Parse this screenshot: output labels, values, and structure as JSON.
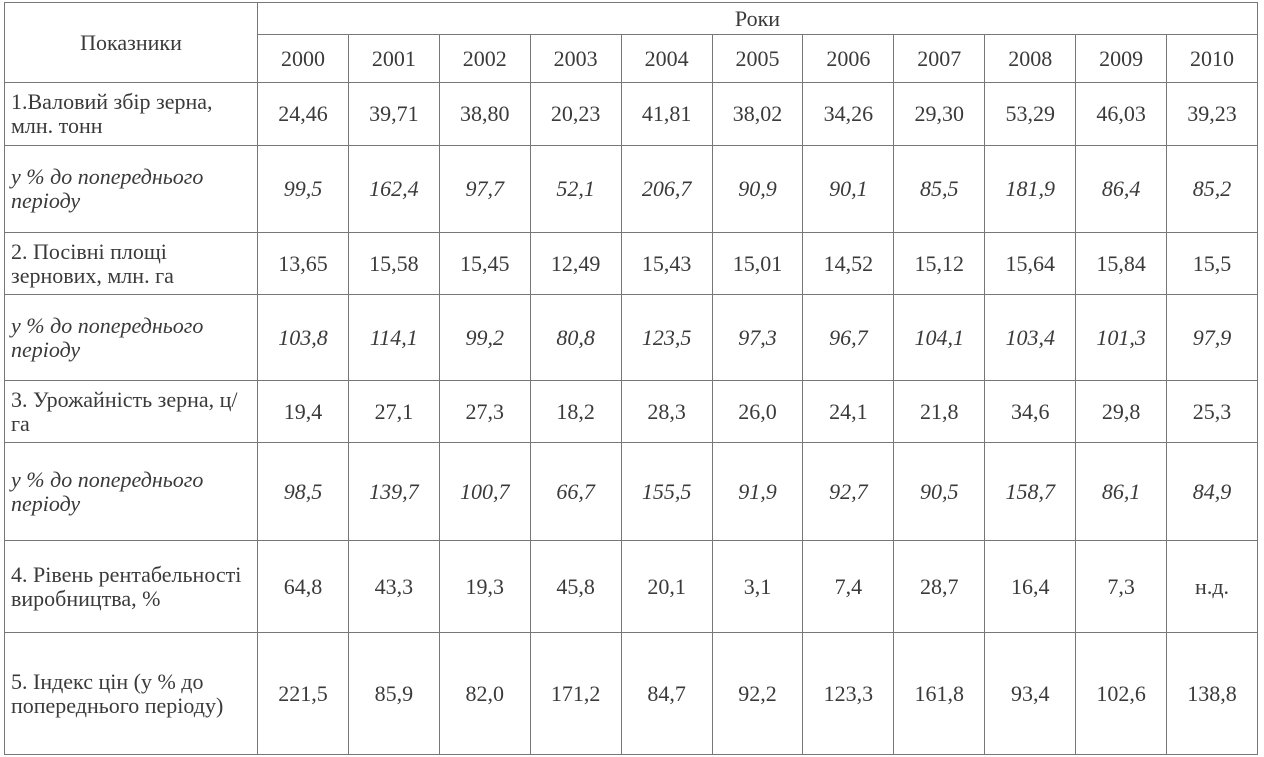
{
  "table": {
    "header": {
      "indicator": "Показники",
      "years_title": "Роки",
      "years": [
        "2000",
        "2001",
        "2002",
        "2003",
        "2004",
        "2005",
        "2006",
        "2007",
        "2008",
        "2009",
        "2010"
      ]
    },
    "rows": [
      {
        "label": "1.Валовий збір зерна, млн. тонн",
        "cells": [
          "24,46",
          "39,71",
          "38,80",
          "20,23",
          "41,81",
          "38,02",
          "34,26",
          "29,30",
          "53,29",
          "46,03",
          "39,23"
        ]
      },
      {
        "label": "у % до попереднього періоду",
        "cells": [
          "99,5",
          "162,4",
          "97,7",
          "52,1",
          "206,7",
          "90,9",
          "90,1",
          "85,5",
          "181,9",
          "86,4",
          "85,2"
        ]
      },
      {
        "label": "2. Посівні площі зернових, млн. га",
        "cells": [
          "13,65",
          "15,58",
          "15,45",
          "12,49",
          "15,43",
          "15,01",
          "14,52",
          "15,12",
          "15,64",
          "15,84",
          "15,5"
        ]
      },
      {
        "label": "у % до попереднього періоду",
        "cells": [
          "103,8",
          "114,1",
          "99,2",
          "80,8",
          "123,5",
          "97,3",
          "96,7",
          "104,1",
          "103,4",
          "101,3",
          "97,9"
        ]
      },
      {
        "label": "3. Урожайність зерна, ц/га",
        "cells": [
          "19,4",
          "27,1",
          "27,3",
          "18,2",
          "28,3",
          "26,0",
          "24,1",
          "21,8",
          "34,6",
          "29,8",
          "25,3"
        ]
      },
      {
        "label": "у % до попереднього періоду",
        "cells": [
          "98,5",
          "139,7",
          "100,7",
          "66,7",
          "155,5",
          "91,9",
          "92,7",
          "90,5",
          "158,7",
          "86,1",
          "84,9"
        ]
      },
      {
        "label": "4. Рівень рентабельності виробництва, %",
        "cells": [
          "64,8",
          "43,3",
          "19,3",
          "45,8",
          "20,1",
          "3,1",
          "7,4",
          "28,7",
          "16,4",
          "7,3",
          "н.д."
        ]
      },
      {
        "label": "5. Індекс цін (у % до попереднього періоду)",
        "cells": [
          "221,5",
          "85,9",
          "82,0",
          "171,2",
          "84,7",
          "92,2",
          "123,3",
          "161,8",
          "93,4",
          "102,6",
          "138,8"
        ]
      }
    ]
  }
}
